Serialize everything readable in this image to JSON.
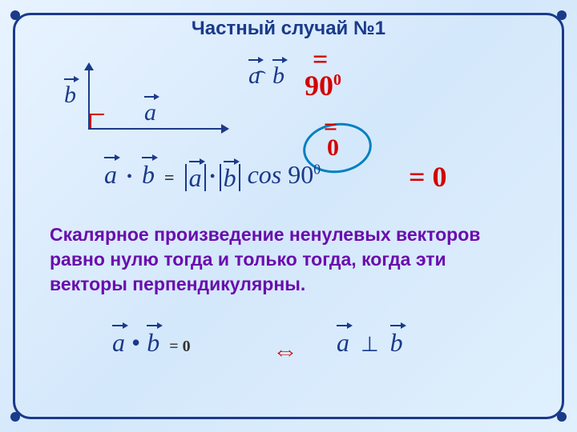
{
  "title": "Частный случай №1",
  "colors": {
    "frame": "#1a3a8a",
    "accent_red": "#d40000",
    "text_purple": "#6a0dad",
    "oval": "#0080c0",
    "bg_gradient_from": "#e8f3ff",
    "bg_gradient_to": "#e0f0fd"
  },
  "diagram": {
    "label_a": "a",
    "label_b": "b",
    "angle_symbol": "⌢"
  },
  "angle_expr": {
    "a": "a",
    "b": "b",
    "eq": "=",
    "value": "90",
    "deg": "0"
  },
  "cos_zero": {
    "eq": "=",
    "value": "0"
  },
  "formula": {
    "a": "a",
    "b": "b",
    "dot": "•",
    "eq": "=",
    "abs_a": "a",
    "abs_b": "b",
    "cos": "cos",
    "angle": "90",
    "deg": "0",
    "result_eq": "=",
    "result_val": "0"
  },
  "explanation": "Скалярное произведение ненулевых векторов равно нулю тогда и только тогда, когда эти векторы перпендикулярны.",
  "bottom": {
    "a": "a",
    "b": "b",
    "dot": "•",
    "eq_zero": "= 0",
    "iff": "⇔",
    "a2": "a",
    "perp": "⊥",
    "b2": "b"
  },
  "typography": {
    "title_fontsize": 24,
    "formula_fontsize": 32,
    "explain_fontsize": 23
  }
}
